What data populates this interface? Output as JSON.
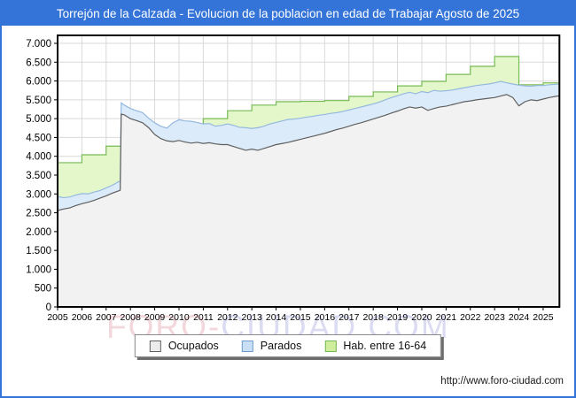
{
  "title_bar": {
    "text": "Torrejón de la Calzada - Evolucion de la poblacion en edad de Trabajar Agosto de 2025",
    "bg": "#3474d8",
    "fg": "#ffffff"
  },
  "footer": {
    "url": "http://www.foro-ciudad.com"
  },
  "watermark": {
    "text_left": "FORO-",
    "text_right": "CIUDAD.COM",
    "color_left": "#f2d8dc",
    "color_right": "#dbdbf2"
  },
  "legend": {
    "items": [
      {
        "label": "Ocupados",
        "fill": "#ececec",
        "stroke": "#5f5f5f"
      },
      {
        "label": "Parados",
        "fill": "#c9dff6",
        "stroke": "#6f9ecf"
      },
      {
        "label": "Hab. entre 16-64",
        "fill": "#cfee9c",
        "stroke": "#74b855"
      }
    ]
  },
  "chart_data": {
    "type": "area",
    "title": "Torrejón de la Calzada - Evolucion de la poblacion en edad de Trabajar Agosto de 2025",
    "xlabel": "",
    "ylabel": "",
    "grid": true,
    "legend_position": "bottom",
    "x_axis": {
      "range": [
        2005,
        2025.67
      ],
      "ticks": [
        2005,
        2006,
        2007,
        2008,
        2009,
        2010,
        2011,
        2012,
        2013,
        2014,
        2015,
        2016,
        2017,
        2018,
        2019,
        2020,
        2021,
        2022,
        2023,
        2024,
        2025
      ]
    },
    "y_axis": {
      "range": [
        0,
        7000
      ],
      "gridline_step": 500,
      "ticks": [
        {
          "value": 0,
          "label": "0"
        },
        {
          "value": 500,
          "label": "500"
        },
        {
          "value": 1000,
          "label": "1.000"
        },
        {
          "value": 1500,
          "label": "1.500"
        },
        {
          "value": 2000,
          "label": "2.000"
        },
        {
          "value": 2500,
          "label": "2.500"
        },
        {
          "value": 3000,
          "label": "3.000"
        },
        {
          "value": 3500,
          "label": "3.500"
        },
        {
          "value": 4000,
          "label": "4.000"
        },
        {
          "value": 4500,
          "label": "4.500"
        },
        {
          "value": 5000,
          "label": "5.000"
        },
        {
          "value": 5500,
          "label": "5.500"
        },
        {
          "value": 6000,
          "label": "6.000"
        },
        {
          "value": 6500,
          "label": "6.500"
        },
        {
          "value": 7000,
          "label": "7.000"
        }
      ]
    },
    "series": [
      {
        "name": "Hab. entre 16-64",
        "style": "step-yearly",
        "fill": "#e3f7ca",
        "stroke": "#77bb55",
        "points": [
          [
            2005,
            3830
          ],
          [
            2006,
            4040
          ],
          [
            2007,
            4270
          ],
          [
            2008,
            4450
          ],
          [
            2009,
            4600
          ],
          [
            2010,
            4800
          ],
          [
            2011,
            5000
          ],
          [
            2012,
            5210
          ],
          [
            2013,
            5360
          ],
          [
            2014,
            5450
          ],
          [
            2015,
            5460
          ],
          [
            2016,
            5480
          ],
          [
            2017,
            5590
          ],
          [
            2018,
            5710
          ],
          [
            2019,
            5870
          ],
          [
            2020,
            5990
          ],
          [
            2021,
            6175
          ],
          [
            2022,
            6390
          ],
          [
            2023,
            6650
          ],
          [
            2024,
            5900
          ],
          [
            2025,
            5950
          ]
        ]
      },
      {
        "name": "Parados (apilado sobre Ocupados)",
        "style": "line",
        "fill": "#dcebf9",
        "stroke": "#94b8df",
        "points": [
          [
            2005.0,
            2930
          ],
          [
            2005.25,
            2900
          ],
          [
            2005.5,
            2920
          ],
          [
            2005.75,
            2970
          ],
          [
            2006.0,
            3010
          ],
          [
            2006.25,
            3000
          ],
          [
            2006.5,
            3050
          ],
          [
            2006.75,
            3090
          ],
          [
            2007.0,
            3160
          ],
          [
            2007.25,
            3230
          ],
          [
            2007.5,
            3320
          ],
          [
            2007.58,
            3340
          ],
          [
            2007.62,
            5420
          ],
          [
            2007.75,
            5360
          ],
          [
            2008.0,
            5270
          ],
          [
            2008.25,
            5210
          ],
          [
            2008.5,
            5160
          ],
          [
            2008.75,
            5010
          ],
          [
            2009.0,
            4890
          ],
          [
            2009.25,
            4800
          ],
          [
            2009.5,
            4750
          ],
          [
            2009.75,
            4890
          ],
          [
            2010.0,
            4970
          ],
          [
            2010.25,
            4940
          ],
          [
            2010.5,
            4930
          ],
          [
            2010.75,
            4900
          ],
          [
            2011.0,
            4860
          ],
          [
            2011.25,
            4870
          ],
          [
            2011.5,
            4800
          ],
          [
            2011.75,
            4820
          ],
          [
            2012.0,
            4860
          ],
          [
            2012.25,
            4820
          ],
          [
            2012.5,
            4770
          ],
          [
            2012.75,
            4760
          ],
          [
            2013.0,
            4740
          ],
          [
            2013.25,
            4760
          ],
          [
            2013.5,
            4800
          ],
          [
            2013.75,
            4860
          ],
          [
            2014.0,
            4900
          ],
          [
            2014.25,
            4940
          ],
          [
            2014.5,
            4980
          ],
          [
            2014.75,
            4990
          ],
          [
            2015.0,
            5010
          ],
          [
            2015.25,
            5040
          ],
          [
            2015.5,
            5060
          ],
          [
            2015.75,
            5090
          ],
          [
            2016.0,
            5110
          ],
          [
            2016.25,
            5140
          ],
          [
            2016.5,
            5160
          ],
          [
            2016.75,
            5190
          ],
          [
            2017.0,
            5230
          ],
          [
            2017.25,
            5270
          ],
          [
            2017.5,
            5310
          ],
          [
            2017.75,
            5350
          ],
          [
            2018.0,
            5390
          ],
          [
            2018.25,
            5440
          ],
          [
            2018.5,
            5500
          ],
          [
            2018.75,
            5560
          ],
          [
            2019.0,
            5610
          ],
          [
            2019.25,
            5660
          ],
          [
            2019.5,
            5700
          ],
          [
            2019.75,
            5660
          ],
          [
            2020.0,
            5720
          ],
          [
            2020.25,
            5690
          ],
          [
            2020.5,
            5750
          ],
          [
            2020.75,
            5730
          ],
          [
            2021.0,
            5740
          ],
          [
            2021.25,
            5760
          ],
          [
            2021.5,
            5790
          ],
          [
            2021.75,
            5820
          ],
          [
            2022.0,
            5850
          ],
          [
            2022.25,
            5880
          ],
          [
            2022.5,
            5900
          ],
          [
            2022.75,
            5920
          ],
          [
            2023.0,
            5950
          ],
          [
            2023.25,
            5990
          ],
          [
            2023.5,
            5950
          ],
          [
            2023.75,
            5920
          ],
          [
            2024.0,
            5890
          ],
          [
            2024.25,
            5870
          ],
          [
            2024.5,
            5860
          ],
          [
            2024.75,
            5880
          ],
          [
            2025.0,
            5880
          ],
          [
            2025.25,
            5900
          ],
          [
            2025.58,
            5915
          ]
        ]
      },
      {
        "name": "Ocupados",
        "style": "line",
        "fill": "#f2f2f2",
        "stroke": "#5f5f5f",
        "points": [
          [
            2005.0,
            2560
          ],
          [
            2005.25,
            2600
          ],
          [
            2005.5,
            2630
          ],
          [
            2005.75,
            2690
          ],
          [
            2006.0,
            2740
          ],
          [
            2006.25,
            2780
          ],
          [
            2006.5,
            2830
          ],
          [
            2006.75,
            2890
          ],
          [
            2007.0,
            2950
          ],
          [
            2007.25,
            3020
          ],
          [
            2007.5,
            3080
          ],
          [
            2007.58,
            3100
          ],
          [
            2007.62,
            5120
          ],
          [
            2007.75,
            5100
          ],
          [
            2008.0,
            5000
          ],
          [
            2008.25,
            4950
          ],
          [
            2008.5,
            4890
          ],
          [
            2008.75,
            4760
          ],
          [
            2009.0,
            4580
          ],
          [
            2009.25,
            4470
          ],
          [
            2009.5,
            4410
          ],
          [
            2009.75,
            4390
          ],
          [
            2010.0,
            4420
          ],
          [
            2010.25,
            4380
          ],
          [
            2010.5,
            4350
          ],
          [
            2010.75,
            4370
          ],
          [
            2011.0,
            4340
          ],
          [
            2011.25,
            4360
          ],
          [
            2011.5,
            4330
          ],
          [
            2011.75,
            4310
          ],
          [
            2012.0,
            4310
          ],
          [
            2012.25,
            4260
          ],
          [
            2012.5,
            4210
          ],
          [
            2012.75,
            4160
          ],
          [
            2013.0,
            4190
          ],
          [
            2013.25,
            4160
          ],
          [
            2013.5,
            4210
          ],
          [
            2013.75,
            4260
          ],
          [
            2014.0,
            4310
          ],
          [
            2014.25,
            4340
          ],
          [
            2014.5,
            4370
          ],
          [
            2014.75,
            4410
          ],
          [
            2015.0,
            4450
          ],
          [
            2015.25,
            4490
          ],
          [
            2015.5,
            4530
          ],
          [
            2015.75,
            4570
          ],
          [
            2016.0,
            4610
          ],
          [
            2016.25,
            4660
          ],
          [
            2016.5,
            4710
          ],
          [
            2016.75,
            4750
          ],
          [
            2017.0,
            4800
          ],
          [
            2017.25,
            4850
          ],
          [
            2017.5,
            4890
          ],
          [
            2017.75,
            4940
          ],
          [
            2018.0,
            4990
          ],
          [
            2018.25,
            5040
          ],
          [
            2018.5,
            5090
          ],
          [
            2018.75,
            5150
          ],
          [
            2019.0,
            5200
          ],
          [
            2019.25,
            5260
          ],
          [
            2019.5,
            5310
          ],
          [
            2019.75,
            5280
          ],
          [
            2020.0,
            5310
          ],
          [
            2020.25,
            5220
          ],
          [
            2020.5,
            5270
          ],
          [
            2020.75,
            5310
          ],
          [
            2021.0,
            5330
          ],
          [
            2021.25,
            5370
          ],
          [
            2021.5,
            5410
          ],
          [
            2021.75,
            5450
          ],
          [
            2022.0,
            5470
          ],
          [
            2022.25,
            5500
          ],
          [
            2022.5,
            5520
          ],
          [
            2022.75,
            5540
          ],
          [
            2023.0,
            5560
          ],
          [
            2023.25,
            5600
          ],
          [
            2023.5,
            5640
          ],
          [
            2023.75,
            5560
          ],
          [
            2024.0,
            5340
          ],
          [
            2024.25,
            5450
          ],
          [
            2024.5,
            5500
          ],
          [
            2024.75,
            5480
          ],
          [
            2025.0,
            5520
          ],
          [
            2025.25,
            5560
          ],
          [
            2025.58,
            5600
          ]
        ]
      }
    ]
  }
}
